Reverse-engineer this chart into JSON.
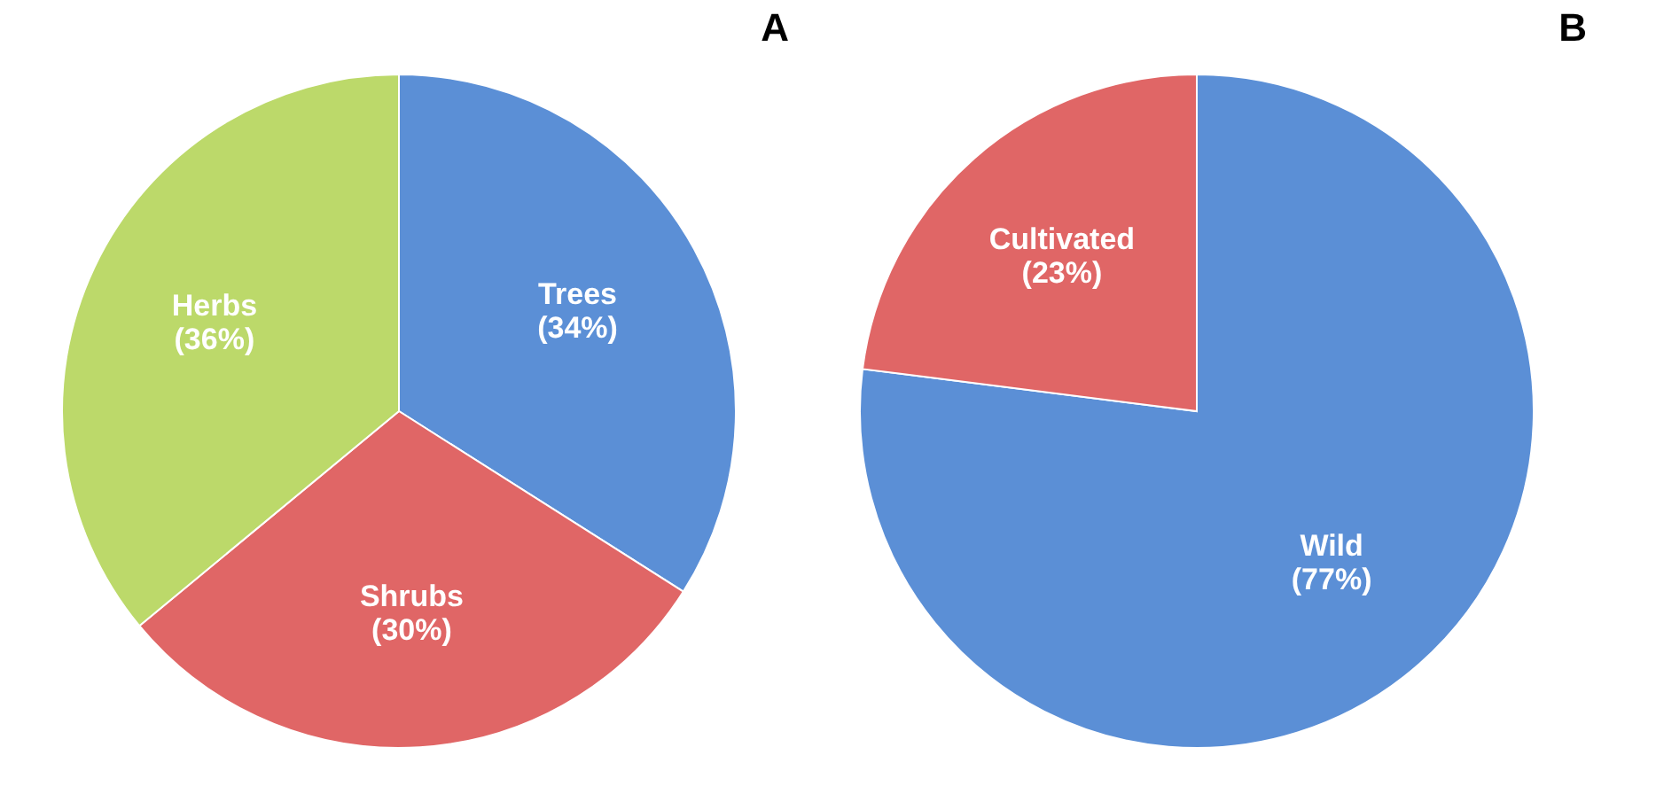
{
  "chart_data": [
    {
      "type": "pie",
      "title": "A",
      "categories": [
        "Trees",
        "Shrubs",
        "Herbs"
      ],
      "values": [
        34,
        30,
        36
      ],
      "colors": [
        "#5b8fd6",
        "#e06666",
        "#bcd96a"
      ],
      "value_labels": [
        "(34%)",
        "(30%)",
        "(36%)"
      ]
    },
    {
      "type": "pie",
      "title": "B",
      "categories": [
        "Wild",
        "Cultivated"
      ],
      "values": [
        77,
        23
      ],
      "colors": [
        "#5b8fd6",
        "#e06666"
      ],
      "value_labels": [
        "(77%)",
        "(23%)"
      ]
    }
  ]
}
